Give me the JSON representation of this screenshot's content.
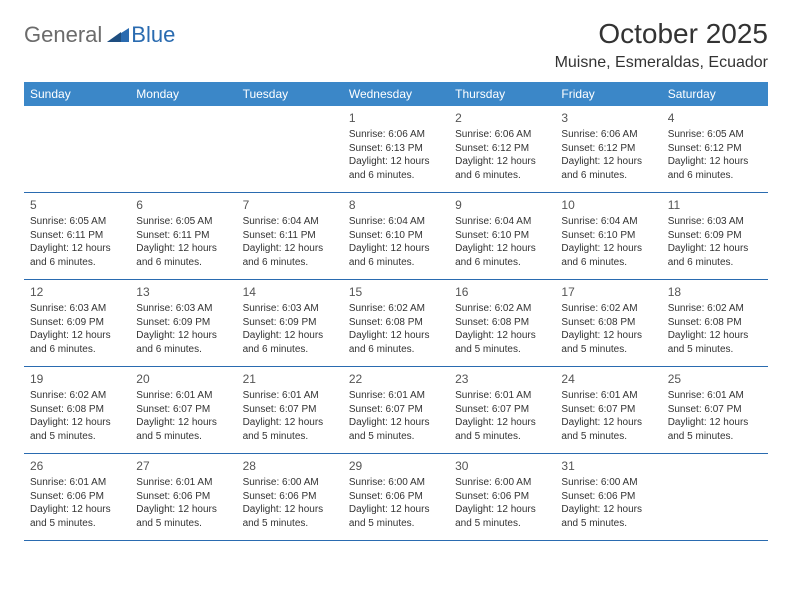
{
  "logo": {
    "word1": "General",
    "word2": "Blue"
  },
  "title": "October 2025",
  "location": "Muisne, Esmeraldas, Ecuador",
  "colors": {
    "header_bg": "#3b87c8",
    "header_text": "#ffffff",
    "rule": "#2a6bb0",
    "body_text": "#333333",
    "logo_gray": "#6b6b6b",
    "logo_blue": "#2a6bb0",
    "background": "#ffffff"
  },
  "weekdays": [
    "Sunday",
    "Monday",
    "Tuesday",
    "Wednesday",
    "Thursday",
    "Friday",
    "Saturday"
  ],
  "weeks": [
    [
      {
        "n": "",
        "sr": "",
        "ss": "",
        "dl": ""
      },
      {
        "n": "",
        "sr": "",
        "ss": "",
        "dl": ""
      },
      {
        "n": "",
        "sr": "",
        "ss": "",
        "dl": ""
      },
      {
        "n": "1",
        "sr": "Sunrise: 6:06 AM",
        "ss": "Sunset: 6:13 PM",
        "dl": "Daylight: 12 hours and 6 minutes."
      },
      {
        "n": "2",
        "sr": "Sunrise: 6:06 AM",
        "ss": "Sunset: 6:12 PM",
        "dl": "Daylight: 12 hours and 6 minutes."
      },
      {
        "n": "3",
        "sr": "Sunrise: 6:06 AM",
        "ss": "Sunset: 6:12 PM",
        "dl": "Daylight: 12 hours and 6 minutes."
      },
      {
        "n": "4",
        "sr": "Sunrise: 6:05 AM",
        "ss": "Sunset: 6:12 PM",
        "dl": "Daylight: 12 hours and 6 minutes."
      }
    ],
    [
      {
        "n": "5",
        "sr": "Sunrise: 6:05 AM",
        "ss": "Sunset: 6:11 PM",
        "dl": "Daylight: 12 hours and 6 minutes."
      },
      {
        "n": "6",
        "sr": "Sunrise: 6:05 AM",
        "ss": "Sunset: 6:11 PM",
        "dl": "Daylight: 12 hours and 6 minutes."
      },
      {
        "n": "7",
        "sr": "Sunrise: 6:04 AM",
        "ss": "Sunset: 6:11 PM",
        "dl": "Daylight: 12 hours and 6 minutes."
      },
      {
        "n": "8",
        "sr": "Sunrise: 6:04 AM",
        "ss": "Sunset: 6:10 PM",
        "dl": "Daylight: 12 hours and 6 minutes."
      },
      {
        "n": "9",
        "sr": "Sunrise: 6:04 AM",
        "ss": "Sunset: 6:10 PM",
        "dl": "Daylight: 12 hours and 6 minutes."
      },
      {
        "n": "10",
        "sr": "Sunrise: 6:04 AM",
        "ss": "Sunset: 6:10 PM",
        "dl": "Daylight: 12 hours and 6 minutes."
      },
      {
        "n": "11",
        "sr": "Sunrise: 6:03 AM",
        "ss": "Sunset: 6:09 PM",
        "dl": "Daylight: 12 hours and 6 minutes."
      }
    ],
    [
      {
        "n": "12",
        "sr": "Sunrise: 6:03 AM",
        "ss": "Sunset: 6:09 PM",
        "dl": "Daylight: 12 hours and 6 minutes."
      },
      {
        "n": "13",
        "sr": "Sunrise: 6:03 AM",
        "ss": "Sunset: 6:09 PM",
        "dl": "Daylight: 12 hours and 6 minutes."
      },
      {
        "n": "14",
        "sr": "Sunrise: 6:03 AM",
        "ss": "Sunset: 6:09 PM",
        "dl": "Daylight: 12 hours and 6 minutes."
      },
      {
        "n": "15",
        "sr": "Sunrise: 6:02 AM",
        "ss": "Sunset: 6:08 PM",
        "dl": "Daylight: 12 hours and 6 minutes."
      },
      {
        "n": "16",
        "sr": "Sunrise: 6:02 AM",
        "ss": "Sunset: 6:08 PM",
        "dl": "Daylight: 12 hours and 5 minutes."
      },
      {
        "n": "17",
        "sr": "Sunrise: 6:02 AM",
        "ss": "Sunset: 6:08 PM",
        "dl": "Daylight: 12 hours and 5 minutes."
      },
      {
        "n": "18",
        "sr": "Sunrise: 6:02 AM",
        "ss": "Sunset: 6:08 PM",
        "dl": "Daylight: 12 hours and 5 minutes."
      }
    ],
    [
      {
        "n": "19",
        "sr": "Sunrise: 6:02 AM",
        "ss": "Sunset: 6:08 PM",
        "dl": "Daylight: 12 hours and 5 minutes."
      },
      {
        "n": "20",
        "sr": "Sunrise: 6:01 AM",
        "ss": "Sunset: 6:07 PM",
        "dl": "Daylight: 12 hours and 5 minutes."
      },
      {
        "n": "21",
        "sr": "Sunrise: 6:01 AM",
        "ss": "Sunset: 6:07 PM",
        "dl": "Daylight: 12 hours and 5 minutes."
      },
      {
        "n": "22",
        "sr": "Sunrise: 6:01 AM",
        "ss": "Sunset: 6:07 PM",
        "dl": "Daylight: 12 hours and 5 minutes."
      },
      {
        "n": "23",
        "sr": "Sunrise: 6:01 AM",
        "ss": "Sunset: 6:07 PM",
        "dl": "Daylight: 12 hours and 5 minutes."
      },
      {
        "n": "24",
        "sr": "Sunrise: 6:01 AM",
        "ss": "Sunset: 6:07 PM",
        "dl": "Daylight: 12 hours and 5 minutes."
      },
      {
        "n": "25",
        "sr": "Sunrise: 6:01 AM",
        "ss": "Sunset: 6:07 PM",
        "dl": "Daylight: 12 hours and 5 minutes."
      }
    ],
    [
      {
        "n": "26",
        "sr": "Sunrise: 6:01 AM",
        "ss": "Sunset: 6:06 PM",
        "dl": "Daylight: 12 hours and 5 minutes."
      },
      {
        "n": "27",
        "sr": "Sunrise: 6:01 AM",
        "ss": "Sunset: 6:06 PM",
        "dl": "Daylight: 12 hours and 5 minutes."
      },
      {
        "n": "28",
        "sr": "Sunrise: 6:00 AM",
        "ss": "Sunset: 6:06 PM",
        "dl": "Daylight: 12 hours and 5 minutes."
      },
      {
        "n": "29",
        "sr": "Sunrise: 6:00 AM",
        "ss": "Sunset: 6:06 PM",
        "dl": "Daylight: 12 hours and 5 minutes."
      },
      {
        "n": "30",
        "sr": "Sunrise: 6:00 AM",
        "ss": "Sunset: 6:06 PM",
        "dl": "Daylight: 12 hours and 5 minutes."
      },
      {
        "n": "31",
        "sr": "Sunrise: 6:00 AM",
        "ss": "Sunset: 6:06 PM",
        "dl": "Daylight: 12 hours and 5 minutes."
      },
      {
        "n": "",
        "sr": "",
        "ss": "",
        "dl": ""
      }
    ]
  ]
}
